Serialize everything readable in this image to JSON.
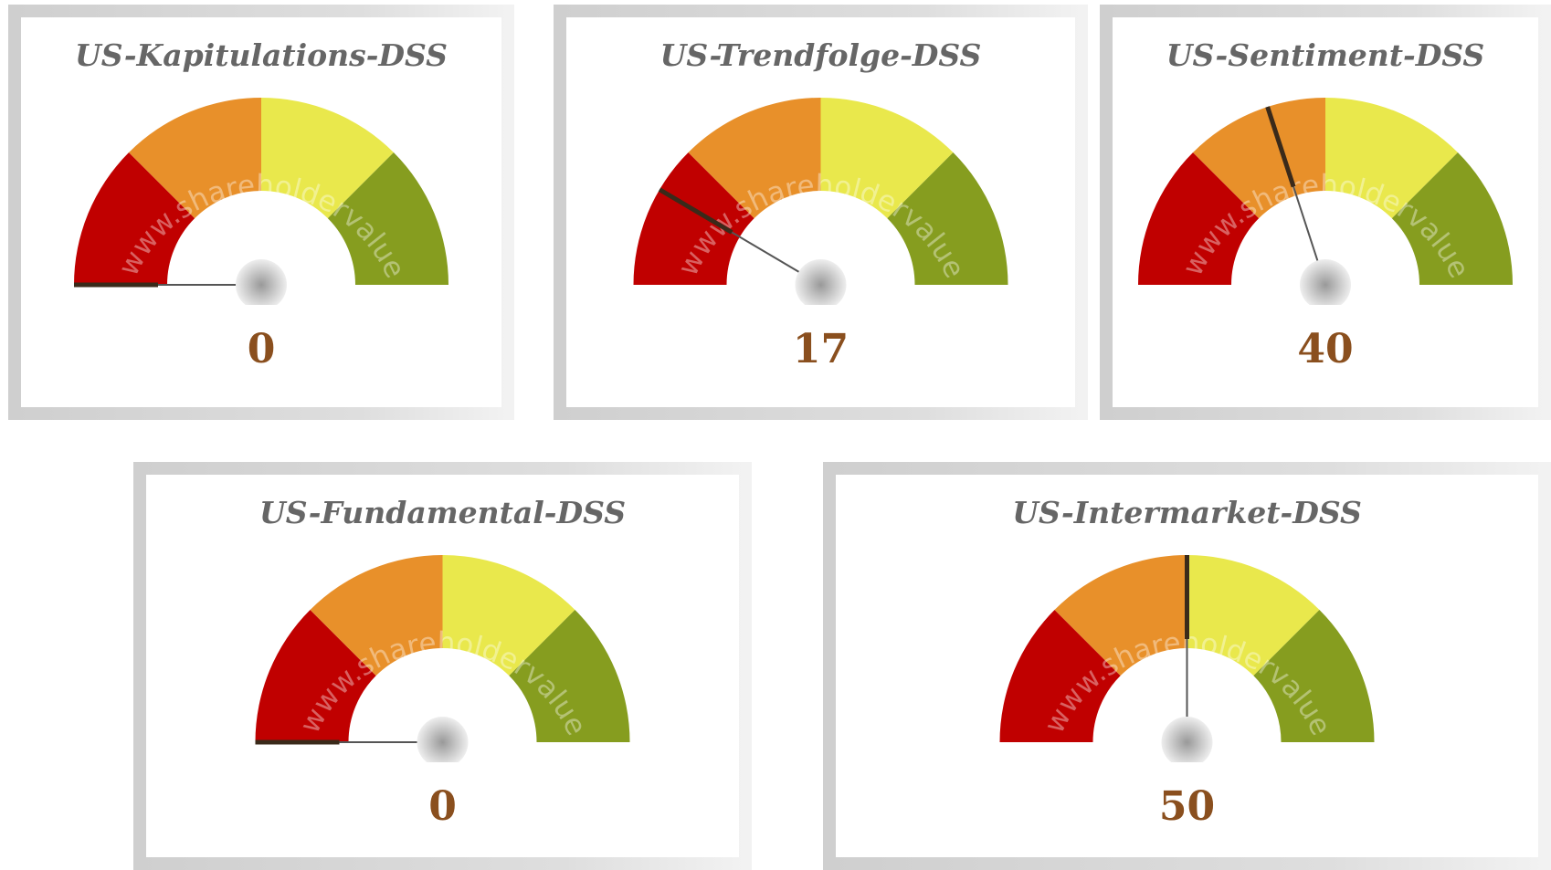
{
  "chart_data": [
    {
      "type": "gauge",
      "title": "US-Kapitulations-DSS",
      "value": 0,
      "range": [
        0,
        100
      ]
    },
    {
      "type": "gauge",
      "title": "US-Trendfolge-DSS",
      "value": 17,
      "range": [
        0,
        100
      ]
    },
    {
      "type": "gauge",
      "title": "US-Sentiment-DSS",
      "value": 40,
      "range": [
        0,
        100
      ]
    },
    {
      "type": "gauge",
      "title": "US-Fundamental-DSS",
      "value": 0,
      "range": [
        0,
        100
      ]
    },
    {
      "type": "gauge",
      "title": "US-Intermarket-DSS",
      "value": 50,
      "range": [
        0,
        100
      ]
    }
  ],
  "bands": [
    {
      "from": 0,
      "to": 25,
      "color": "#c00000"
    },
    {
      "from": 25,
      "to": 50,
      "color": "#e8902a"
    },
    {
      "from": 50,
      "to": 75,
      "color": "#e9e84c"
    },
    {
      "from": 75,
      "to": 100,
      "color": "#869d1f"
    }
  ],
  "watermark": "www.shareholdervalue.de"
}
